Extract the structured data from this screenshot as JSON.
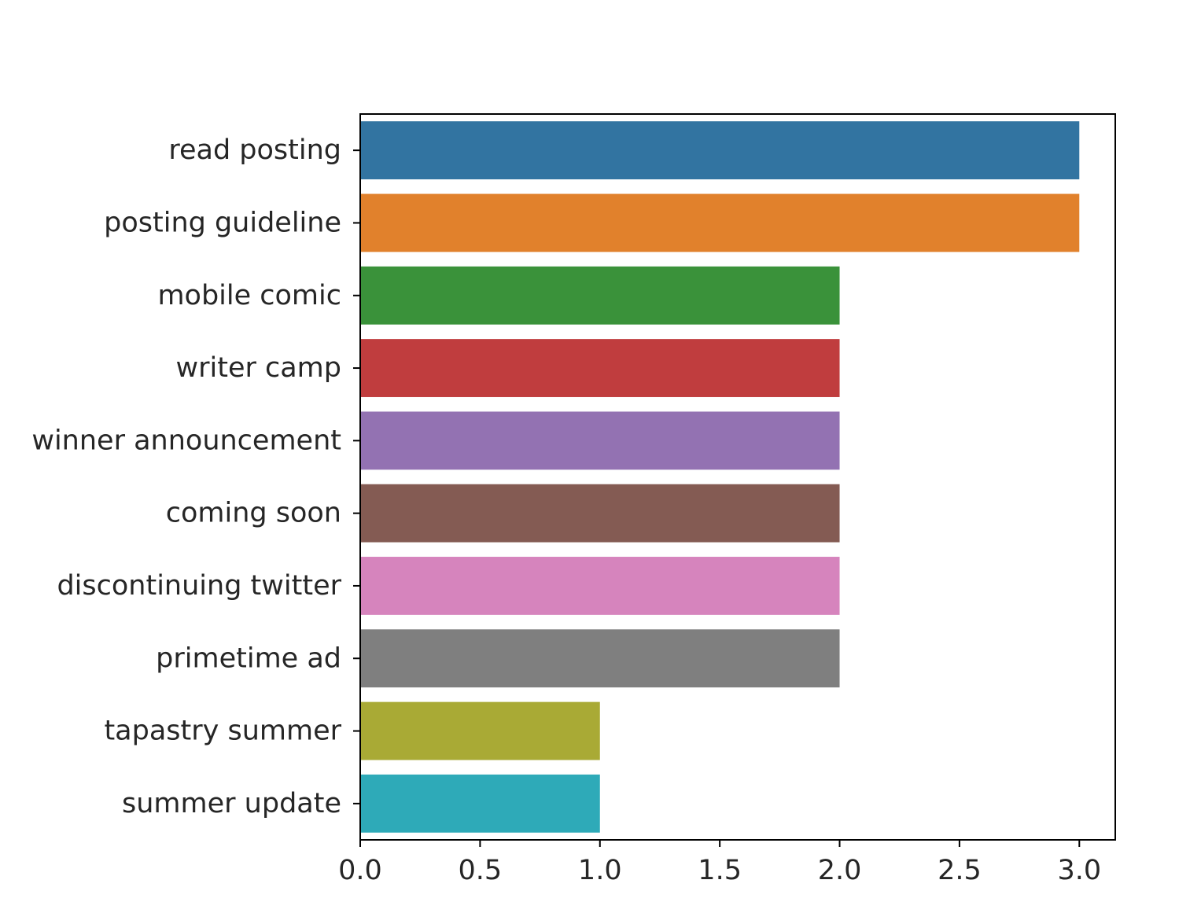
{
  "chart_data": {
    "type": "bar",
    "orientation": "horizontal",
    "title": "",
    "xlabel": "",
    "ylabel": "",
    "categories": [
      "read posting",
      "posting guideline",
      "mobile comic",
      "writer camp",
      "winner announcement",
      "coming soon",
      "discontinuing twitter",
      "primetime ad",
      "tapastry summer",
      "summer update"
    ],
    "values": [
      3,
      3,
      2,
      2,
      2,
      2,
      2,
      2,
      1,
      1
    ],
    "colors": [
      "#3274a1",
      "#e1812c",
      "#3a923a",
      "#c03d3e",
      "#9372b2",
      "#845b53",
      "#d684bd",
      "#7f7f7f",
      "#a9aa35",
      "#2eaab8"
    ],
    "xlim": [
      0,
      3.15
    ],
    "xticks": [
      "0.0",
      "0.5",
      "1.0",
      "1.5",
      "2.0",
      "2.5",
      "3.0"
    ],
    "grid": false,
    "legend": "none"
  }
}
